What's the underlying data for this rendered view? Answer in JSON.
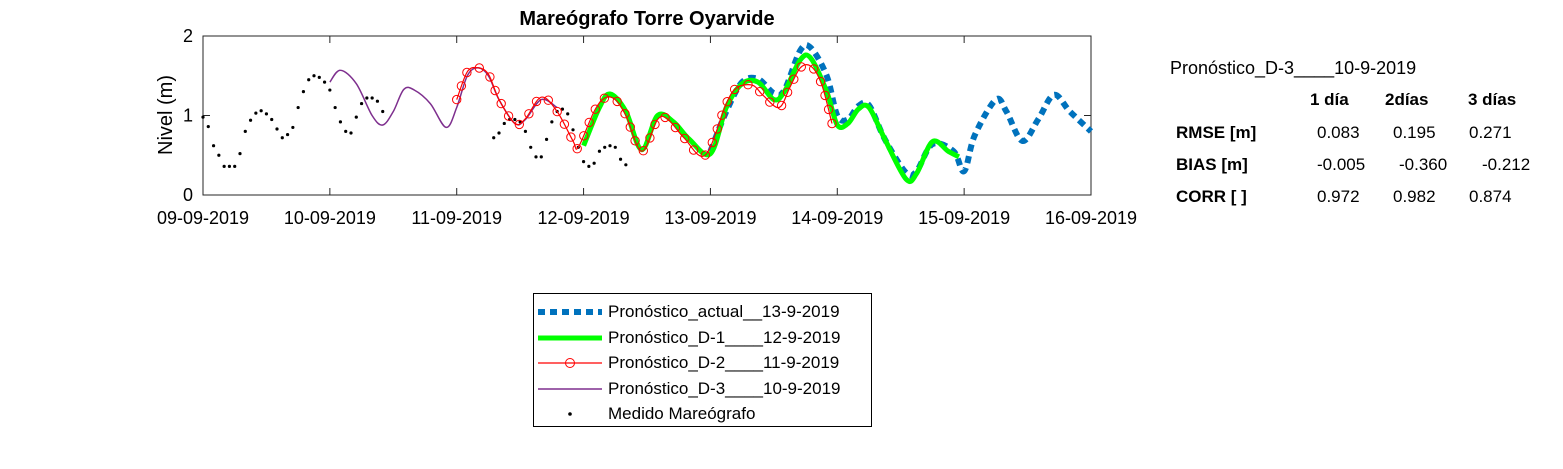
{
  "chart_data": {
    "type": "line",
    "title": "Mareógrafo Torre Oyarvide",
    "xlabel": "",
    "ylabel": "Nivel (m)",
    "xlim": [
      "2019-09-09",
      "2019-09-16"
    ],
    "ylim": [
      0,
      2
    ],
    "x_ticks": [
      "09-09-2019",
      "10-09-2019",
      "11-09-2019",
      "12-09-2019",
      "13-09-2019",
      "14-09-2019",
      "15-09-2019",
      "16-09-2019"
    ],
    "y_ticks": [
      "0",
      "1",
      "2"
    ],
    "grid": false,
    "legend_position": "below plot, centered",
    "series": [
      {
        "name": "Pronóstico_actual__13-9-2019",
        "color": "#0072BD",
        "style": "thick dotted",
        "points": [
          [
            "2019-09-13 00:00",
            0.55
          ],
          [
            "2019-09-13 03:00",
            1.05
          ],
          [
            "2019-09-13 06:00",
            1.42
          ],
          [
            "2019-09-13 09:00",
            1.46
          ],
          [
            "2019-09-13 12:00",
            1.28
          ],
          [
            "2019-09-13 14:00",
            1.32
          ],
          [
            "2019-09-13 17:00",
            1.82
          ],
          [
            "2019-09-13 19:00",
            1.85
          ],
          [
            "2019-09-13 22:00",
            1.5
          ],
          [
            "2019-09-14 00:00",
            1.0
          ],
          [
            "2019-09-14 02:00",
            0.95
          ],
          [
            "2019-09-14 04:00",
            1.12
          ],
          [
            "2019-09-14 06:00",
            1.13
          ],
          [
            "2019-09-14 09:00",
            0.7
          ],
          [
            "2019-09-14 13:00",
            0.28
          ],
          [
            "2019-09-14 15:00",
            0.3
          ],
          [
            "2019-09-14 18:00",
            0.64
          ],
          [
            "2019-09-14 22:00",
            0.55
          ],
          [
            "2019-09-15 00:00",
            0.3
          ],
          [
            "2019-09-15 02:00",
            0.75
          ],
          [
            "2019-09-15 06:00",
            1.2
          ],
          [
            "2019-09-15 08:00",
            1.05
          ],
          [
            "2019-09-15 11:00",
            0.68
          ],
          [
            "2019-09-15 14:00",
            0.95
          ],
          [
            "2019-09-15 17:00",
            1.26
          ],
          [
            "2019-09-15 20:00",
            1.05
          ],
          [
            "2019-09-16 00:00",
            0.8
          ]
        ]
      },
      {
        "name": "Pronóstico_D-1____12-9-2019",
        "color": "#00FF00",
        "style": "thick solid",
        "points": [
          [
            "2019-09-12 00:00",
            0.62
          ],
          [
            "2019-09-12 03:00",
            1.1
          ],
          [
            "2019-09-12 05:00",
            1.27
          ],
          [
            "2019-09-12 08:00",
            1.05
          ],
          [
            "2019-09-12 11:00",
            0.57
          ],
          [
            "2019-09-12 14:00",
            1.0
          ],
          [
            "2019-09-12 17:00",
            0.92
          ],
          [
            "2019-09-12 20:00",
            0.7
          ],
          [
            "2019-09-13 00:00",
            0.52
          ],
          [
            "2019-09-13 03:00",
            1.1
          ],
          [
            "2019-09-13 06:00",
            1.4
          ],
          [
            "2019-09-13 09:00",
            1.42
          ],
          [
            "2019-09-13 12:00",
            1.2
          ],
          [
            "2019-09-13 14:00",
            1.3
          ],
          [
            "2019-09-13 17:00",
            1.7
          ],
          [
            "2019-09-13 19:00",
            1.72
          ],
          [
            "2019-09-13 22:00",
            1.3
          ],
          [
            "2019-09-14 00:00",
            0.88
          ],
          [
            "2019-09-14 02:00",
            0.9
          ],
          [
            "2019-09-14 04:00",
            1.08
          ],
          [
            "2019-09-14 06:00",
            1.1
          ],
          [
            "2019-09-14 09:00",
            0.7
          ],
          [
            "2019-09-14 13:00",
            0.2
          ],
          [
            "2019-09-14 15:00",
            0.27
          ],
          [
            "2019-09-14 18:00",
            0.67
          ],
          [
            "2019-09-14 21:00",
            0.55
          ],
          [
            "2019-09-14 23:00",
            0.48
          ]
        ]
      },
      {
        "name": "Pronóstico_D-2____11-9-2019",
        "color": "#FF0000",
        "style": "thin solid with circle markers",
        "points": [
          [
            "2019-09-11 00:00",
            1.2
          ],
          [
            "2019-09-11 02:00",
            1.55
          ],
          [
            "2019-09-11 04:00",
            1.6
          ],
          [
            "2019-09-11 06:00",
            1.52
          ],
          [
            "2019-09-11 08:00",
            1.2
          ],
          [
            "2019-09-11 11:00",
            0.9
          ],
          [
            "2019-09-11 13:00",
            0.96
          ],
          [
            "2019-09-11 16:00",
            1.23
          ],
          [
            "2019-09-11 19:00",
            1.05
          ],
          [
            "2019-09-11 22:00",
            0.68
          ],
          [
            "2019-09-11 23:00",
            0.6
          ],
          [
            "2019-09-12 02:00",
            1.05
          ],
          [
            "2019-09-12 04:00",
            1.22
          ],
          [
            "2019-09-12 06:00",
            1.2
          ],
          [
            "2019-09-12 08:00",
            1.0
          ],
          [
            "2019-09-12 11:00",
            0.55
          ],
          [
            "2019-09-12 14:00",
            0.95
          ],
          [
            "2019-09-12 16:00",
            0.95
          ],
          [
            "2019-09-12 19:00",
            0.72
          ],
          [
            "2019-09-12 23:00",
            0.5
          ],
          [
            "2019-09-13 03:00",
            1.15
          ],
          [
            "2019-09-13 05:00",
            1.35
          ],
          [
            "2019-09-13 08:00",
            1.38
          ],
          [
            "2019-09-13 10:00",
            1.25
          ],
          [
            "2019-09-13 13:00",
            1.1
          ],
          [
            "2019-09-13 15:00",
            1.35
          ],
          [
            "2019-09-13 17:00",
            1.6
          ],
          [
            "2019-09-13 19:00",
            1.62
          ],
          [
            "2019-09-13 21:00",
            1.4
          ],
          [
            "2019-09-13 23:00",
            0.9
          ]
        ]
      },
      {
        "name": "Pronóstico_D-3____10-9-2019",
        "color": "#7E2F8E",
        "style": "thin solid",
        "points": [
          [
            "2019-09-10 00:00",
            1.42
          ],
          [
            "2019-09-10 02:00",
            1.57
          ],
          [
            "2019-09-10 05:00",
            1.4
          ],
          [
            "2019-09-10 08:00",
            1.0
          ],
          [
            "2019-09-10 10:00",
            0.88
          ],
          [
            "2019-09-10 12:00",
            1.05
          ],
          [
            "2019-09-10 14:00",
            1.33
          ],
          [
            "2019-09-10 16:00",
            1.32
          ],
          [
            "2019-09-10 19:00",
            1.15
          ],
          [
            "2019-09-10 22:00",
            0.85
          ],
          [
            "2019-09-11 00:00",
            1.1
          ],
          [
            "2019-09-11 02:00",
            1.5
          ],
          [
            "2019-09-11 04:00",
            1.6
          ],
          [
            "2019-09-11 06:00",
            1.5
          ],
          [
            "2019-09-11 08:00",
            1.2
          ],
          [
            "2019-09-11 11:00",
            0.9
          ],
          [
            "2019-09-11 13:00",
            0.95
          ],
          [
            "2019-09-11 16:00",
            1.2
          ],
          [
            "2019-09-11 19:00",
            1.1
          ]
        ]
      },
      {
        "name": "Medido Mareógrafo",
        "color": "#000000",
        "style": "dots",
        "points": [
          [
            "2019-09-09 00:00",
            0.98
          ],
          [
            "2019-09-09 01:00",
            0.86
          ],
          [
            "2019-09-09 02:00",
            0.62
          ],
          [
            "2019-09-09 03:00",
            0.5
          ],
          [
            "2019-09-09 04:00",
            0.36
          ],
          [
            "2019-09-09 05:00",
            0.36
          ],
          [
            "2019-09-09 06:00",
            0.36
          ],
          [
            "2019-09-09 07:00",
            0.52
          ],
          [
            "2019-09-09 08:00",
            0.8
          ],
          [
            "2019-09-09 09:00",
            0.94
          ],
          [
            "2019-09-09 10:00",
            1.03
          ],
          [
            "2019-09-09 11:00",
            1.06
          ],
          [
            "2019-09-09 12:00",
            1.02
          ],
          [
            "2019-09-09 13:00",
            0.95
          ],
          [
            "2019-09-09 14:00",
            0.83
          ],
          [
            "2019-09-09 15:00",
            0.72
          ],
          [
            "2019-09-09 16:00",
            0.76
          ],
          [
            "2019-09-09 17:00",
            0.85
          ],
          [
            "2019-09-09 18:00",
            1.1
          ],
          [
            "2019-09-09 19:00",
            1.3
          ],
          [
            "2019-09-09 20:00",
            1.45
          ],
          [
            "2019-09-09 21:00",
            1.5
          ],
          [
            "2019-09-09 22:00",
            1.48
          ],
          [
            "2019-09-09 23:00",
            1.42
          ],
          [
            "2019-09-10 00:00",
            1.32
          ],
          [
            "2019-09-10 01:00",
            1.1
          ],
          [
            "2019-09-10 02:00",
            0.92
          ],
          [
            "2019-09-10 03:00",
            0.8
          ],
          [
            "2019-09-10 04:00",
            0.78
          ],
          [
            "2019-09-10 05:00",
            0.98
          ],
          [
            "2019-09-10 06:00",
            1.15
          ],
          [
            "2019-09-10 07:00",
            1.22
          ],
          [
            "2019-09-10 08:00",
            1.22
          ],
          [
            "2019-09-10 09:00",
            1.18
          ],
          [
            "2019-09-10 10:00",
            1.05
          ],
          [
            "2019-09-11 07:00",
            0.72
          ],
          [
            "2019-09-11 08:00",
            0.78
          ],
          [
            "2019-09-11 09:00",
            0.9
          ],
          [
            "2019-09-11 10:00",
            0.95
          ],
          [
            "2019-09-11 11:00",
            0.95
          ],
          [
            "2019-09-11 12:00",
            0.92
          ],
          [
            "2019-09-11 13:00",
            0.8
          ],
          [
            "2019-09-11 14:00",
            0.6
          ],
          [
            "2019-09-11 15:00",
            0.48
          ],
          [
            "2019-09-11 16:00",
            0.48
          ],
          [
            "2019-09-11 17:00",
            0.7
          ],
          [
            "2019-09-11 18:00",
            0.92
          ],
          [
            "2019-09-11 19:00",
            1.05
          ],
          [
            "2019-09-11 20:00",
            1.08
          ],
          [
            "2019-09-11 21:00",
            1.02
          ],
          [
            "2019-09-11 22:00",
            0.82
          ],
          [
            "2019-09-11 23:00",
            0.6
          ],
          [
            "2019-09-12 00:00",
            0.42
          ],
          [
            "2019-09-12 01:00",
            0.36
          ],
          [
            "2019-09-12 02:00",
            0.4
          ],
          [
            "2019-09-12 03:00",
            0.55
          ],
          [
            "2019-09-12 04:00",
            0.6
          ],
          [
            "2019-09-12 05:00",
            0.62
          ],
          [
            "2019-09-12 06:00",
            0.6
          ],
          [
            "2019-09-12 07:00",
            0.45
          ],
          [
            "2019-09-12 08:00",
            0.38
          ]
        ]
      }
    ]
  },
  "stats": {
    "title": "Pronóstico_D-3____10-9-2019",
    "headers": [
      "1 día",
      "2días",
      "3 días"
    ],
    "rows": [
      {
        "label": "RMSE [m]",
        "values": [
          "0.083",
          "0.195",
          "0.271"
        ]
      },
      {
        "label": "BIAS [m]",
        "values": [
          "-0.005",
          "-0.360",
          "-0.212"
        ]
      },
      {
        "label": "CORR [  ]",
        "values": [
          "0.972",
          "0.982",
          "0.874"
        ]
      }
    ]
  }
}
